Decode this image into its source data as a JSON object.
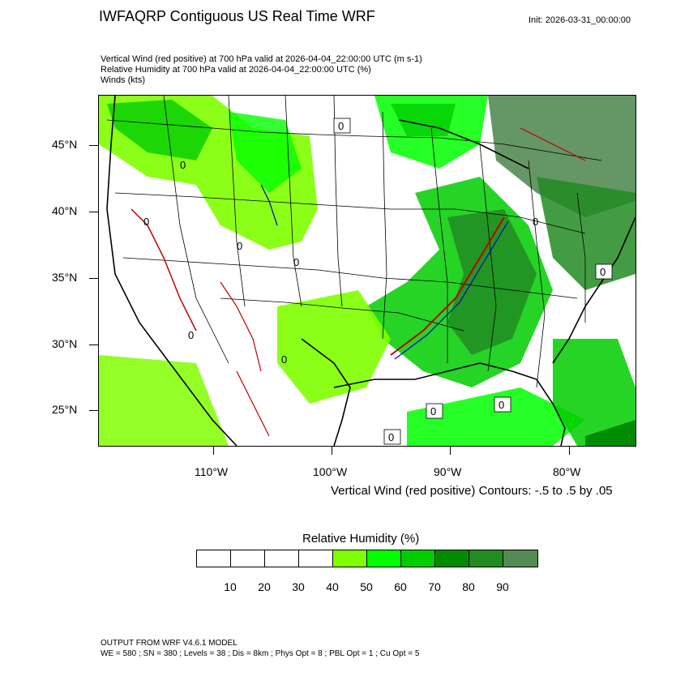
{
  "header": {
    "title": "IWFAQRP Contiguous US Real Time WRF",
    "init": "Init: 2026-03-31_00:00:00"
  },
  "subtitles": [
    "Vertical Wind (red positive) at 700 hPa valid at 2026-04-04_22:00:00 UTC   (m s-1)",
    "Relative Humidity at 700 hPa valid at 2026-04-04_22:00:00 UTC   (%)",
    "Winds   (kts)"
  ],
  "map": {
    "lat_labels": [
      "45°N",
      "40°N",
      "35°N",
      "30°N",
      "25°N"
    ],
    "lon_labels": [
      "110°W",
      "100°W",
      "90°W",
      "80°W"
    ],
    "contour_labels": [
      "0"
    ],
    "contour_note": "Vertical Wind (red positive) Contours: -.5 to .5 by .05"
  },
  "colorbar": {
    "title": "Relative Humidity  (%)",
    "colors": [
      "#ffffff",
      "#ffffff",
      "#ffffff",
      "#ffffff",
      "#80ff00",
      "#00ff00",
      "#00cd00",
      "#008b00",
      "#228b22",
      "#548b54"
    ],
    "labels": [
      "10",
      "20",
      "30",
      "40",
      "50",
      "60",
      "70",
      "80",
      "90"
    ]
  },
  "footer": {
    "line1": "OUTPUT FROM WRF V4.6.1 MODEL",
    "line2": "WE = 580 ; SN = 380 ; Levels = 38 ; Dis = 8km ; Phys Opt = 8 ; PBL Opt = 1 ; Cu Opt = 5"
  }
}
